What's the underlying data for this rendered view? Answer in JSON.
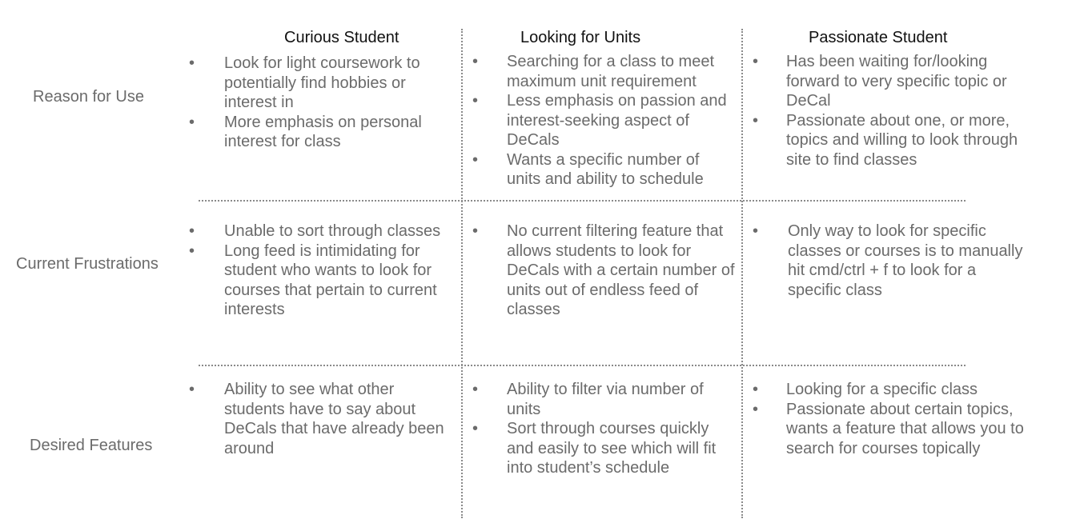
{
  "columns": [
    {
      "title": "Curious Student"
    },
    {
      "title": "Looking for Units"
    },
    {
      "title": "Passionate Student"
    }
  ],
  "rows": [
    {
      "label": "Reason for Use",
      "cells": [
        [
          "Look for light coursework to potentially find hobbies or interest in",
          "More emphasis on personal interest for class"
        ],
        [
          "Searching for a class to meet maximum unit requirement",
          "Less emphasis on passion and interest-seeking aspect of DeCals",
          "Wants a specific number of units and ability to schedule"
        ],
        [
          "Has been waiting for/looking forward to very specific topic or DeCal",
          "Passionate about one, or more, topics and willing to look through site to find classes"
        ]
      ]
    },
    {
      "label": "Current Frustrations",
      "cells": [
        [
          "Unable to sort through classes",
          "Long feed is intimidating for student who wants to look for courses that pertain to current interests"
        ],
        [
          "No current filtering feature that allows students to look for DeCals with a certain number of units out of endless feed of classes"
        ],
        [
          "Only way to look for specific classes or courses is to manually hit cmd/ctrl + f to look for a specific class"
        ]
      ]
    },
    {
      "label": "Desired Features",
      "cells": [
        [
          "Ability to see what other students have to say about DeCals that have already been around"
        ],
        [
          "Ability to filter via number of units",
          "Sort through courses quickly and easily to see which will fit into student’s schedule"
        ],
        [
          "Looking for a specific class",
          "Passionate about certain topics, wants a feature that allows you to search for courses topically"
        ]
      ]
    }
  ],
  "bullet_glyph": "•"
}
